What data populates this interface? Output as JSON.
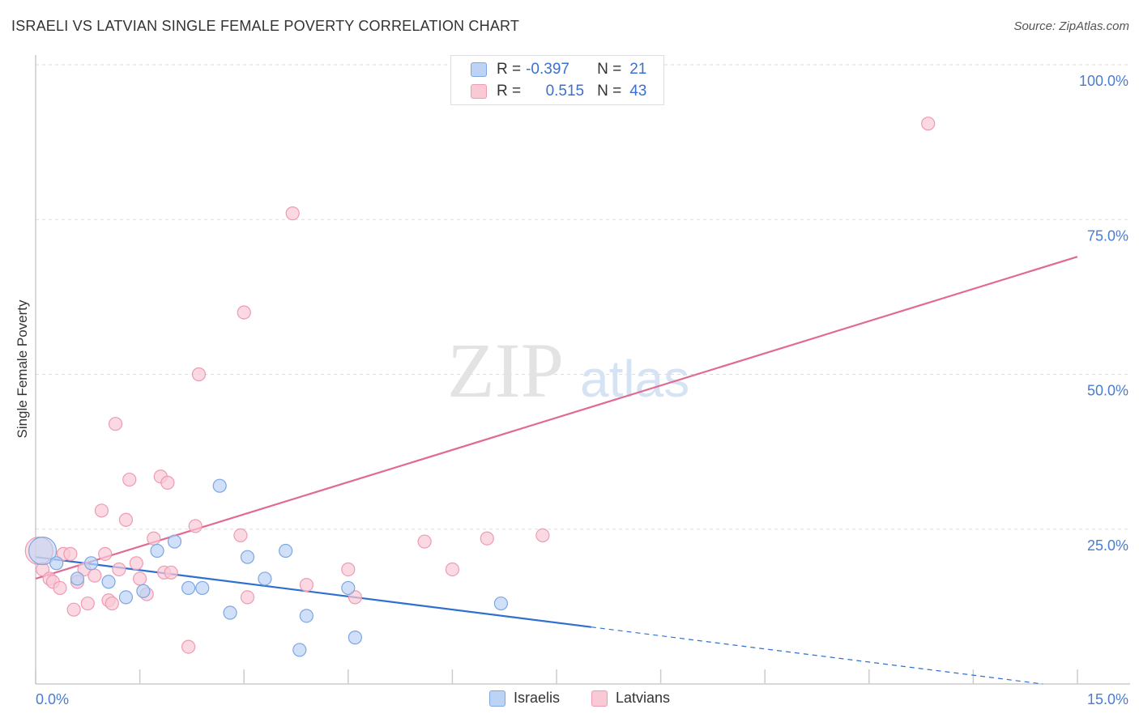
{
  "header": {
    "title": "ISRAELI VS LATVIAN SINGLE FEMALE POVERTY CORRELATION CHART",
    "source": "Source: ZipAtlas.com"
  },
  "legend": {
    "israelis": {
      "r_label": "R =",
      "r_value": "-0.397",
      "n_label": "N =",
      "n_value": "21"
    },
    "latvians": {
      "r_label": "R =",
      "r_value": "0.515",
      "n_label": "N =",
      "n_value": "43"
    }
  },
  "bottom_legend": {
    "israelis": "Israelis",
    "latvians": "Latvians"
  },
  "watermark": {
    "zip": "ZIP",
    "atlas": "atlas"
  },
  "colors": {
    "israelis_fill": "#bcd3f5",
    "israelis_stroke": "#7ea6e0",
    "israelis_line": "#2f6fd0",
    "latvians_fill": "#f9c9d6",
    "latvians_stroke": "#ee9ab2",
    "latvians_line": "#e06a93",
    "grid": "#dddddd",
    "tick_text": "#4a7cd0"
  },
  "chart_data": {
    "type": "scatter",
    "title": "ISRAELI VS LATVIAN SINGLE FEMALE POVERTY CORRELATION CHART",
    "xlabel": "",
    "ylabel": "Single Female Poverty",
    "xlim": [
      0,
      15
    ],
    "ylim": [
      0,
      100
    ],
    "x_tick_labels": [
      {
        "value": 0,
        "label": "0.0%"
      },
      {
        "value": 15,
        "label": "15.0%"
      }
    ],
    "y_tick_labels": [
      {
        "value": 25,
        "label": "25.0%"
      },
      {
        "value": 50,
        "label": "50.0%"
      },
      {
        "value": 75,
        "label": "75.0%"
      },
      {
        "value": 100,
        "label": "100.0%"
      }
    ],
    "series": [
      {
        "name": "Israelis",
        "points": [
          [
            0.1,
            21.5,
            "large"
          ],
          [
            0.3,
            19.5
          ],
          [
            0.6,
            17.0
          ],
          [
            0.8,
            19.5
          ],
          [
            1.05,
            16.5
          ],
          [
            1.3,
            14.0
          ],
          [
            1.55,
            15.0
          ],
          [
            1.75,
            21.5
          ],
          [
            2.0,
            23.0
          ],
          [
            2.2,
            15.5
          ],
          [
            2.4,
            15.5
          ],
          [
            2.65,
            32.0
          ],
          [
            2.8,
            11.5
          ],
          [
            3.05,
            20.5
          ],
          [
            3.3,
            17.0
          ],
          [
            3.6,
            21.5
          ],
          [
            3.8,
            5.5
          ],
          [
            3.9,
            11.0
          ],
          [
            4.5,
            15.5
          ],
          [
            4.6,
            7.5
          ],
          [
            6.7,
            13.0
          ]
        ],
        "trend": {
          "x_start": 0,
          "y_start": 20.5,
          "x_solid_end": 8.0,
          "x_end": 14.5,
          "y_end": 0.0
        }
      },
      {
        "name": "Latvians",
        "points": [
          [
            0.05,
            21.5,
            "large"
          ],
          [
            0.1,
            18.5
          ],
          [
            0.2,
            17.0
          ],
          [
            0.25,
            16.5
          ],
          [
            0.35,
            15.5
          ],
          [
            0.4,
            21.0
          ],
          [
            0.5,
            21.0
          ],
          [
            0.55,
            12.0
          ],
          [
            0.6,
            16.5
          ],
          [
            0.7,
            18.5
          ],
          [
            0.75,
            13.0
          ],
          [
            0.85,
            17.5
          ],
          [
            0.95,
            28.0
          ],
          [
            1.0,
            21.0
          ],
          [
            1.05,
            13.5
          ],
          [
            1.1,
            13.0
          ],
          [
            1.15,
            42.0
          ],
          [
            1.2,
            18.5
          ],
          [
            1.3,
            26.5
          ],
          [
            1.35,
            33.0
          ],
          [
            1.45,
            19.5
          ],
          [
            1.5,
            17.0
          ],
          [
            1.6,
            14.5
          ],
          [
            1.7,
            23.5
          ],
          [
            1.8,
            33.5
          ],
          [
            1.85,
            18.0
          ],
          [
            1.9,
            32.5
          ],
          [
            1.95,
            18.0
          ],
          [
            2.2,
            6.0
          ],
          [
            2.3,
            25.5
          ],
          [
            2.35,
            50.0
          ],
          [
            2.95,
            24.0
          ],
          [
            3.0,
            60.0
          ],
          [
            3.05,
            14.0
          ],
          [
            3.7,
            76.0
          ],
          [
            3.9,
            16.0
          ],
          [
            4.5,
            18.5
          ],
          [
            4.6,
            14.0
          ],
          [
            5.6,
            23.0
          ],
          [
            6.0,
            18.5
          ],
          [
            6.5,
            23.5
          ],
          [
            7.3,
            24.0
          ],
          [
            12.85,
            90.5
          ]
        ],
        "trend": {
          "x_start": 0,
          "y_start": 17.0,
          "x_end": 15,
          "y_end": 69.0
        }
      }
    ]
  }
}
